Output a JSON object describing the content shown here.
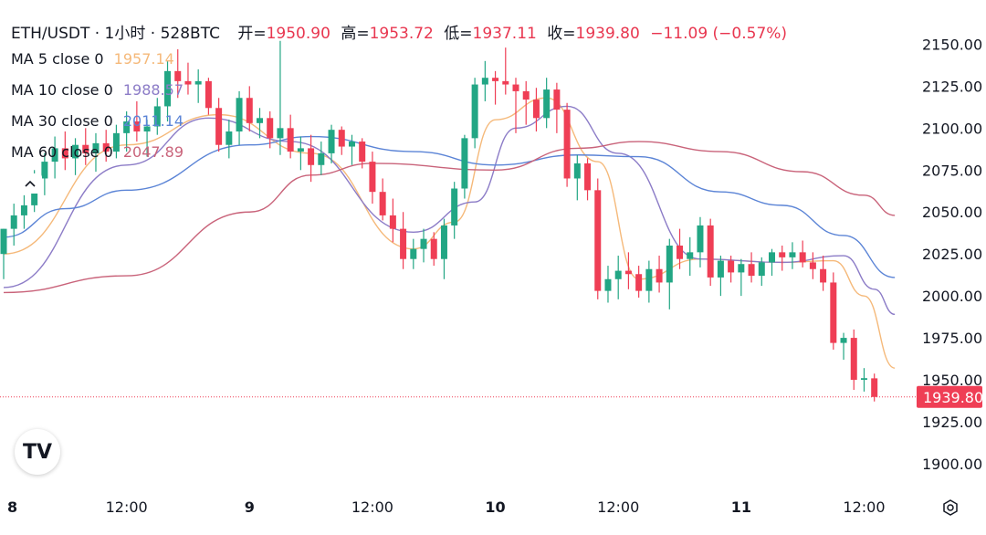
{
  "header": {
    "symbol": "ETH/USDT · 1小时 · 528BTC",
    "open_label": "开=",
    "open": "1950.90",
    "high_label": "高=",
    "high": "1953.72",
    "low_label": "低=",
    "low": "1937.11",
    "close_label": "收=",
    "close": "1939.80",
    "change": "−11.09 (−0.57%)"
  },
  "ma_legend": [
    {
      "label": "MA 5 close 0",
      "value": "1957.14",
      "color": "#f5b97a"
    },
    {
      "label": "MA 10 close 0",
      "value": "1988.57",
      "color": "#8c7cc7"
    },
    {
      "label": "MA 30 close 0",
      "value": "2011.14",
      "color": "#5b84d6"
    },
    {
      "label": "MA 60 close 0",
      "value": "2047.89",
      "color": "#c9637a"
    }
  ],
  "colors": {
    "up": "#22a684",
    "down": "#ef3e55",
    "price_tag": "#ef3e55"
  },
  "icons": {
    "collapse": "chevron-up-icon",
    "logo": "tradingview-logo",
    "settings": "settings-icon"
  },
  "logo_text": "TV",
  "chart_data": {
    "type": "candlestick",
    "symbol": "ETH/USDT",
    "interval": "1小时",
    "y_ticks": [
      "2150.00",
      "2125.00",
      "2100.00",
      "2075.00",
      "2050.00",
      "2025.00",
      "2000.00",
      "1975.00",
      "1950.00",
      "1925.00",
      "1900.00"
    ],
    "ylim": [
      1888,
      2172
    ],
    "x_ticks": [
      {
        "label": "8",
        "bar": 0
      },
      {
        "label": "12:00",
        "bar": 12
      },
      {
        "label": "9",
        "bar": 24
      },
      {
        "label": "12:00",
        "bar": 36
      },
      {
        "label": "10",
        "bar": 48
      },
      {
        "label": "12:00",
        "bar": 60
      },
      {
        "label": "11",
        "bar": 72
      },
      {
        "label": "12:00",
        "bar": 84
      }
    ],
    "last_price": "1939.80",
    "candles": [
      [
        2025,
        2040,
        2010,
        2040
      ],
      [
        2040,
        2055,
        2030,
        2048
      ],
      [
        2048,
        2060,
        2040,
        2054
      ],
      [
        2054,
        2075,
        2050,
        2070
      ],
      [
        2070,
        2085,
        2060,
        2080
      ],
      [
        2080,
        2095,
        2070,
        2088
      ],
      [
        2088,
        2098,
        2075,
        2082
      ],
      [
        2082,
        2094,
        2072,
        2090
      ],
      [
        2090,
        2100,
        2078,
        2085
      ],
      [
        2085,
        2097,
        2074,
        2091
      ],
      [
        2091,
        2099,
        2080,
        2086
      ],
      [
        2086,
        2102,
        2082,
        2097
      ],
      [
        2097,
        2110,
        2086,
        2104
      ],
      [
        2104,
        2116,
        2092,
        2098
      ],
      [
        2098,
        2105,
        2083,
        2101
      ],
      [
        2101,
        2118,
        2096,
        2113
      ],
      [
        2113,
        2140,
        2104,
        2134
      ],
      [
        2134,
        2147,
        2118,
        2128
      ],
      [
        2128,
        2139,
        2120,
        2126
      ],
      [
        2126,
        2135,
        2115,
        2128
      ],
      [
        2128,
        2130,
        2108,
        2112
      ],
      [
        2112,
        2118,
        2086,
        2090
      ],
      [
        2090,
        2105,
        2082,
        2098
      ],
      [
        2098,
        2122,
        2090,
        2118
      ],
      [
        2118,
        2125,
        2098,
        2103
      ],
      [
        2103,
        2112,
        2094,
        2106
      ],
      [
        2106,
        2110,
        2088,
        2094
      ],
      [
        2094,
        2152,
        2084,
        2100
      ],
      [
        2100,
        2108,
        2082,
        2086
      ],
      [
        2086,
        2095,
        2075,
        2088
      ],
      [
        2088,
        2096,
        2068,
        2078
      ],
      [
        2078,
        2092,
        2072,
        2085
      ],
      [
        2085,
        2102,
        2079,
        2099
      ],
      [
        2099,
        2101,
        2084,
        2089
      ],
      [
        2089,
        2096,
        2078,
        2092
      ],
      [
        2092,
        2094,
        2076,
        2080
      ],
      [
        2080,
        2086,
        2055,
        2062
      ],
      [
        2062,
        2070,
        2045,
        2048
      ],
      [
        2048,
        2058,
        2032,
        2040
      ],
      [
        2040,
        2050,
        2016,
        2022
      ],
      [
        2022,
        2034,
        2016,
        2028
      ],
      [
        2028,
        2040,
        2020,
        2034
      ],
      [
        2034,
        2038,
        2018,
        2022
      ],
      [
        2022,
        2046,
        2010,
        2042
      ],
      [
        2042,
        2068,
        2034,
        2064
      ],
      [
        2064,
        2096,
        2058,
        2094
      ],
      [
        2094,
        2130,
        2088,
        2126
      ],
      [
        2126,
        2140,
        2116,
        2130
      ],
      [
        2130,
        2134,
        2114,
        2128
      ],
      [
        2128,
        2148,
        2120,
        2126
      ],
      [
        2126,
        2130,
        2097,
        2122
      ],
      [
        2122,
        2128,
        2102,
        2117
      ],
      [
        2117,
        2124,
        2098,
        2106
      ],
      [
        2106,
        2130,
        2100,
        2123
      ],
      [
        2123,
        2127,
        2097,
        2111
      ],
      [
        2111,
        2115,
        2065,
        2070
      ],
      [
        2070,
        2084,
        2057,
        2079
      ],
      [
        2079,
        2082,
        2057,
        2063
      ],
      [
        2063,
        2070,
        1998,
        2003
      ],
      [
        2003,
        2018,
        1996,
        2010
      ],
      [
        2010,
        2024,
        1998,
        2015
      ],
      [
        2015,
        2026,
        2004,
        2013
      ],
      [
        2013,
        2018,
        1999,
        2003
      ],
      [
        2003,
        2021,
        1996,
        2016
      ],
      [
        2016,
        2024,
        2002,
        2008
      ],
      [
        2008,
        2034,
        1992,
        2030
      ],
      [
        2030,
        2040,
        2016,
        2022
      ],
      [
        2022,
        2035,
        2012,
        2026
      ],
      [
        2026,
        2047,
        2017,
        2042
      ],
      [
        2042,
        2046,
        2006,
        2011
      ],
      [
        2011,
        2024,
        2000,
        2021
      ],
      [
        2021,
        2024,
        2008,
        2014
      ],
      [
        2014,
        2022,
        2000,
        2019
      ],
      [
        2019,
        2026,
        2008,
        2012
      ],
      [
        2012,
        2023,
        2006,
        2020
      ],
      [
        2020,
        2028,
        2012,
        2026
      ],
      [
        2026,
        2030,
        2015,
        2023
      ],
      [
        2023,
        2032,
        2016,
        2026
      ],
      [
        2026,
        2033,
        2017,
        2020
      ],
      [
        2020,
        2026,
        2010,
        2016
      ],
      [
        2016,
        2024,
        2003,
        2008
      ],
      [
        2008,
        2014,
        1968,
        1972
      ],
      [
        1972,
        1978,
        1962,
        1975
      ],
      [
        1975,
        1980,
        1944,
        1950
      ],
      [
        1950,
        1957,
        1943,
        1951
      ],
      [
        1950.9,
        1953.72,
        1937.11,
        1939.8
      ]
    ],
    "ma_series": [
      {
        "name": "MA 5 close 0",
        "color": "#f5b97a",
        "points": [
          [
            0,
            2025
          ],
          [
            12,
            2090
          ],
          [
            21,
            2108
          ],
          [
            30,
            2085
          ],
          [
            40,
            2028
          ],
          [
            44,
            2044
          ],
          [
            48,
            2105
          ],
          [
            53,
            2118
          ],
          [
            58,
            2080
          ],
          [
            62,
            2010
          ],
          [
            68,
            2022
          ],
          [
            76,
            2020
          ],
          [
            81,
            2021
          ],
          [
            84,
            2000
          ],
          [
            87,
            1957
          ]
        ]
      },
      {
        "name": "MA 10 close 0",
        "color": "#8c7cc7",
        "points": [
          [
            0,
            2005
          ],
          [
            12,
            2078
          ],
          [
            20,
            2106
          ],
          [
            28,
            2092
          ],
          [
            40,
            2038
          ],
          [
            46,
            2056
          ],
          [
            50,
            2100
          ],
          [
            55,
            2113
          ],
          [
            60,
            2085
          ],
          [
            68,
            2022
          ],
          [
            76,
            2020
          ],
          [
            82,
            2024
          ],
          [
            85,
            2004
          ],
          [
            87,
            1989
          ]
        ]
      },
      {
        "name": "MA 30 close 0",
        "color": "#5b84d6",
        "points": [
          [
            0,
            2035
          ],
          [
            6,
            2052
          ],
          [
            12,
            2063
          ],
          [
            24,
            2090
          ],
          [
            30,
            2095
          ],
          [
            40,
            2086
          ],
          [
            48,
            2078
          ],
          [
            56,
            2084
          ],
          [
            62,
            2083
          ],
          [
            70,
            2062
          ],
          [
            76,
            2054
          ],
          [
            82,
            2036
          ],
          [
            87,
            2011
          ]
        ]
      },
      {
        "name": "MA 60 close 0",
        "color": "#c9637a",
        "points": [
          [
            0,
            2002
          ],
          [
            12,
            2012
          ],
          [
            24,
            2050
          ],
          [
            30,
            2072
          ],
          [
            36,
            2079
          ],
          [
            48,
            2075
          ],
          [
            56,
            2088
          ],
          [
            62,
            2092
          ],
          [
            70,
            2086
          ],
          [
            78,
            2074
          ],
          [
            84,
            2060
          ],
          [
            87,
            2048
          ]
        ]
      }
    ]
  }
}
